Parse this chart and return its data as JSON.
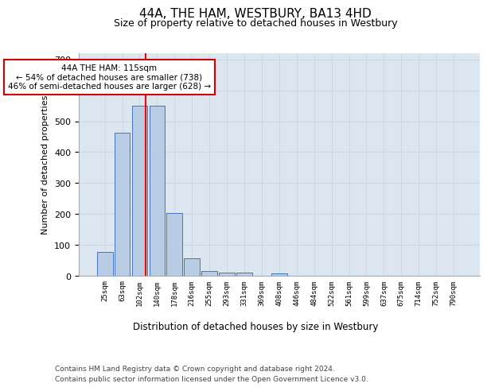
{
  "title": "44A, THE HAM, WESTBURY, BA13 4HD",
  "subtitle": "Size of property relative to detached houses in Westbury",
  "xlabel": "Distribution of detached houses by size in Westbury",
  "ylabel": "Number of detached properties",
  "categories": [
    "25sqm",
    "63sqm",
    "102sqm",
    "140sqm",
    "178sqm",
    "216sqm",
    "255sqm",
    "293sqm",
    "331sqm",
    "369sqm",
    "408sqm",
    "446sqm",
    "484sqm",
    "522sqm",
    "561sqm",
    "599sqm",
    "637sqm",
    "675sqm",
    "714sqm",
    "752sqm",
    "790sqm"
  ],
  "values": [
    78,
    462,
    550,
    550,
    204,
    57,
    15,
    10,
    10,
    0,
    8,
    0,
    0,
    0,
    0,
    0,
    0,
    0,
    0,
    0,
    0
  ],
  "bar_color": "#b8cce4",
  "bar_edge_color": "#4472c4",
  "grid_color": "#d0d8e8",
  "background_color": "#dce6f1",
  "annotation_text": "44A THE HAM: 115sqm\n← 54% of detached houses are smaller (738)\n46% of semi-detached houses are larger (628) →",
  "annotation_box_color": "#ffffff",
  "annotation_box_edge": "#cc0000",
  "ylim": [
    0,
    720
  ],
  "yticks": [
    0,
    100,
    200,
    300,
    400,
    500,
    600,
    700
  ],
  "footer_line1": "Contains HM Land Registry data © Crown copyright and database right 2024.",
  "footer_line2": "Contains public sector information licensed under the Open Government Licence v3.0."
}
